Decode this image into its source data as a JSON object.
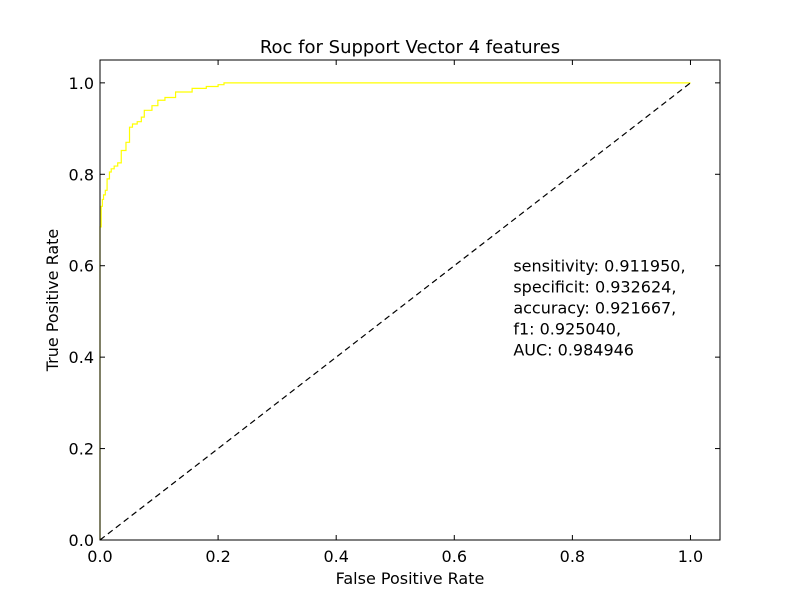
{
  "chart_data": {
    "type": "line",
    "title": "Roc for Support Vector 4 features",
    "xlabel": "False Positive Rate",
    "ylabel": "True Positive Rate",
    "xlim": [
      0.0,
      1.05
    ],
    "ylim": [
      0.0,
      1.05
    ],
    "xticks": [
      "0.0",
      "0.2",
      "0.4",
      "0.6",
      "0.8",
      "1.0"
    ],
    "yticks": [
      "0.0",
      "0.2",
      "0.4",
      "0.6",
      "0.8",
      "1.0"
    ],
    "grid": false,
    "series": [
      {
        "style": "solid",
        "color": "#ffff00",
        "x": [
          0.0,
          0.0,
          0.002,
          0.002,
          0.004,
          0.004,
          0.006,
          0.006,
          0.009,
          0.009,
          0.012,
          0.012,
          0.016,
          0.016,
          0.019,
          0.019,
          0.024,
          0.024,
          0.03,
          0.03,
          0.036,
          0.036,
          0.044,
          0.044,
          0.05,
          0.05,
          0.055,
          0.055,
          0.063,
          0.063,
          0.07,
          0.07,
          0.075,
          0.075,
          0.088,
          0.088,
          0.098,
          0.098,
          0.11,
          0.11,
          0.128,
          0.128,
          0.156,
          0.156,
          0.18,
          0.18,
          0.2,
          0.2,
          0.21,
          0.21,
          1.0
        ],
        "y": [
          0.0,
          0.685,
          0.685,
          0.73,
          0.73,
          0.745,
          0.745,
          0.755,
          0.755,
          0.765,
          0.765,
          0.79,
          0.79,
          0.805,
          0.805,
          0.812,
          0.812,
          0.818,
          0.818,
          0.825,
          0.825,
          0.852,
          0.852,
          0.87,
          0.87,
          0.903,
          0.903,
          0.91,
          0.91,
          0.915,
          0.915,
          0.925,
          0.925,
          0.94,
          0.94,
          0.95,
          0.95,
          0.962,
          0.962,
          0.968,
          0.968,
          0.98,
          0.98,
          0.988,
          0.988,
          0.992,
          0.992,
          0.996,
          0.996,
          1.0,
          1.0
        ]
      },
      {
        "style": "dashed",
        "color": "#000000",
        "x": [
          0.0,
          1.0
        ],
        "y": [
          0.0,
          1.0
        ]
      }
    ],
    "annotations": [
      "sensitivity: 0.911950,",
      "specificit: 0.932624,",
      "accuracy: 0.921667,",
      "f1: 0.925040,",
      "AUC: 0.984946"
    ]
  }
}
